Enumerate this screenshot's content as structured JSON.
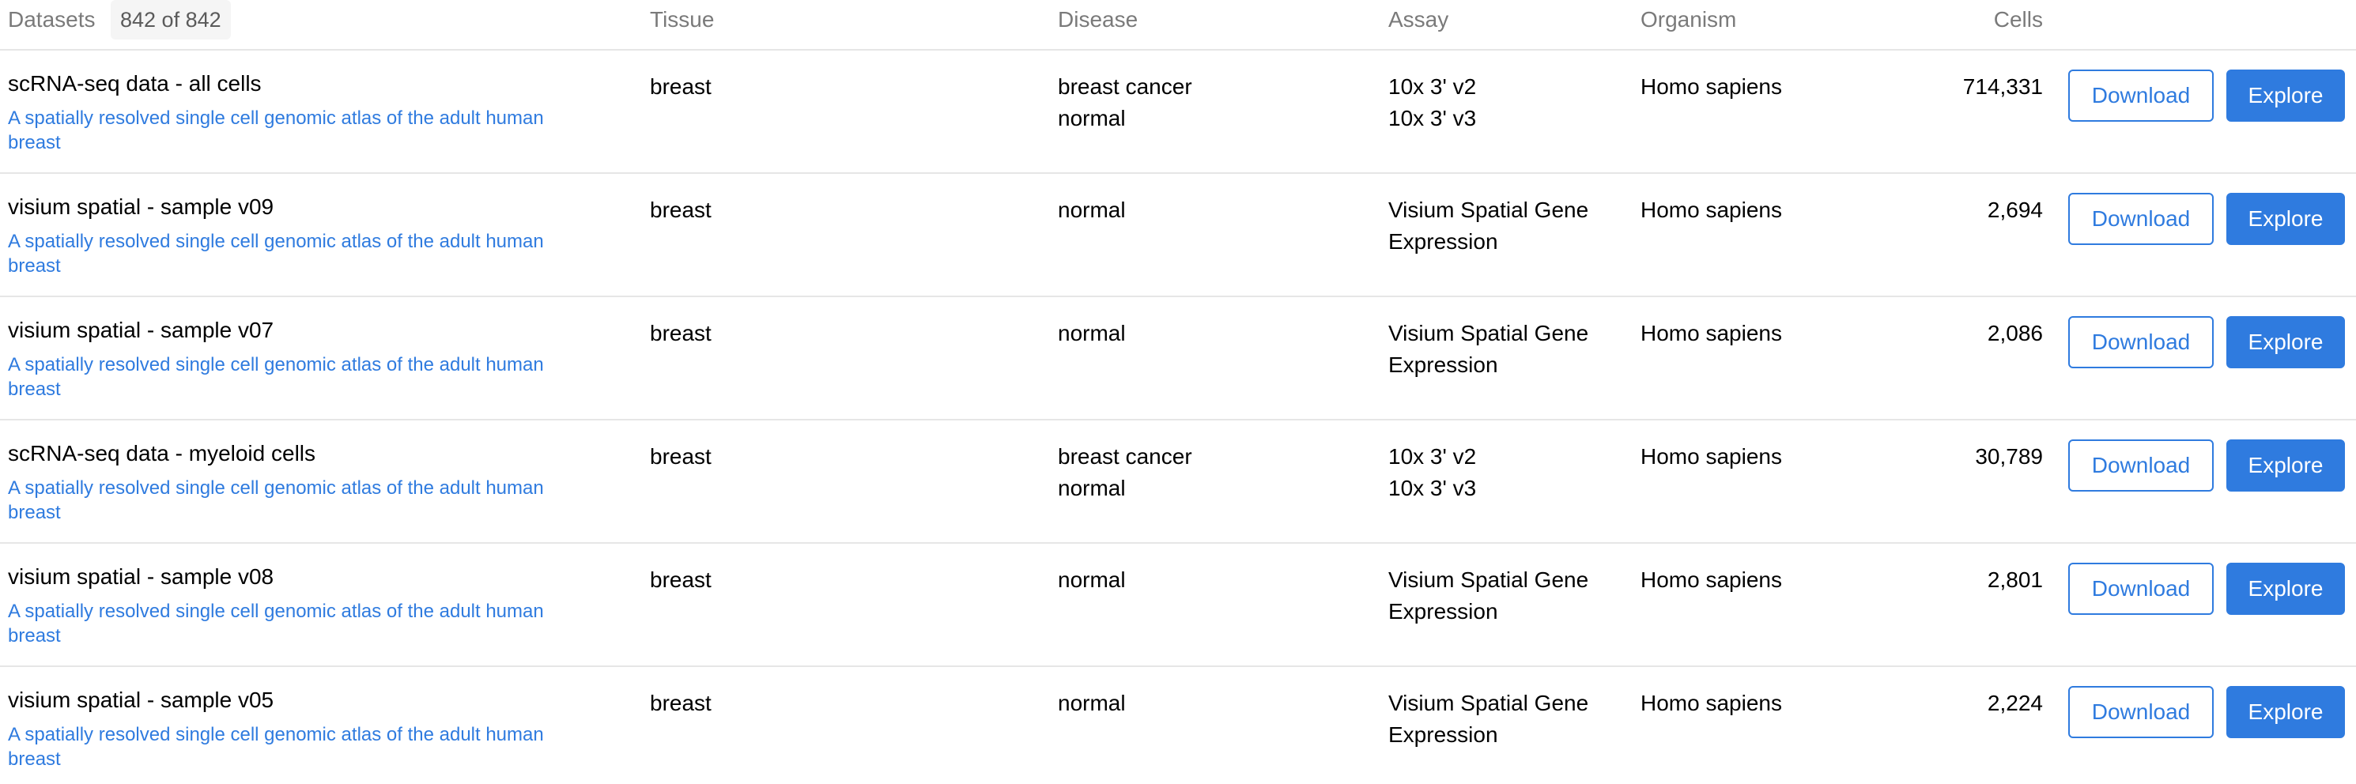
{
  "header": {
    "datasets_label": "Datasets",
    "count": "842 of 842",
    "tissue": "Tissue",
    "disease": "Disease",
    "assay": "Assay",
    "organism": "Organism",
    "cells": "Cells"
  },
  "rows": [
    {
      "title": "scRNA-seq data - all cells",
      "collection": "A spatially resolved single cell genomic atlas of the adult human breast",
      "tissue": "breast",
      "disease": [
        "breast cancer",
        "normal"
      ],
      "assay": [
        "10x 3' v2",
        "10x 3' v3"
      ],
      "organism": "Homo sapiens",
      "cells": "714,331",
      "download": "Download",
      "explore": "Explore"
    },
    {
      "title": "visium spatial - sample v09",
      "collection": "A spatially resolved single cell genomic atlas of the adult human breast",
      "tissue": "breast",
      "disease": [
        "normal"
      ],
      "assay": [
        "Visium Spatial Gene",
        "Expression"
      ],
      "organism": "Homo sapiens",
      "cells": "2,694",
      "download": "Download",
      "explore": "Explore"
    },
    {
      "title": "visium spatial - sample v07",
      "collection": "A spatially resolved single cell genomic atlas of the adult human breast",
      "tissue": "breast",
      "disease": [
        "normal"
      ],
      "assay": [
        "Visium Spatial Gene",
        "Expression"
      ],
      "organism": "Homo sapiens",
      "cells": "2,086",
      "download": "Download",
      "explore": "Explore"
    },
    {
      "title": "scRNA-seq data - myeloid cells",
      "collection": "A spatially resolved single cell genomic atlas of the adult human breast",
      "tissue": "breast",
      "disease": [
        "breast cancer",
        "normal"
      ],
      "assay": [
        "10x 3' v2",
        "10x 3' v3"
      ],
      "organism": "Homo sapiens",
      "cells": "30,789",
      "download": "Download",
      "explore": "Explore"
    },
    {
      "title": "visium spatial - sample v08",
      "collection": "A spatially resolved single cell genomic atlas of the adult human breast",
      "tissue": "breast",
      "disease": [
        "normal"
      ],
      "assay": [
        "Visium Spatial Gene",
        "Expression"
      ],
      "organism": "Homo sapiens",
      "cells": "2,801",
      "download": "Download",
      "explore": "Explore"
    },
    {
      "title": "visium spatial - sample v05",
      "collection": "A spatially resolved single cell genomic atlas of the adult human breast",
      "tissue": "breast",
      "disease": [
        "normal"
      ],
      "assay": [
        "Visium Spatial Gene",
        "Expression"
      ],
      "organism": "Homo sapiens",
      "cells": "2,224",
      "download": "Download",
      "explore": "Explore"
    }
  ]
}
